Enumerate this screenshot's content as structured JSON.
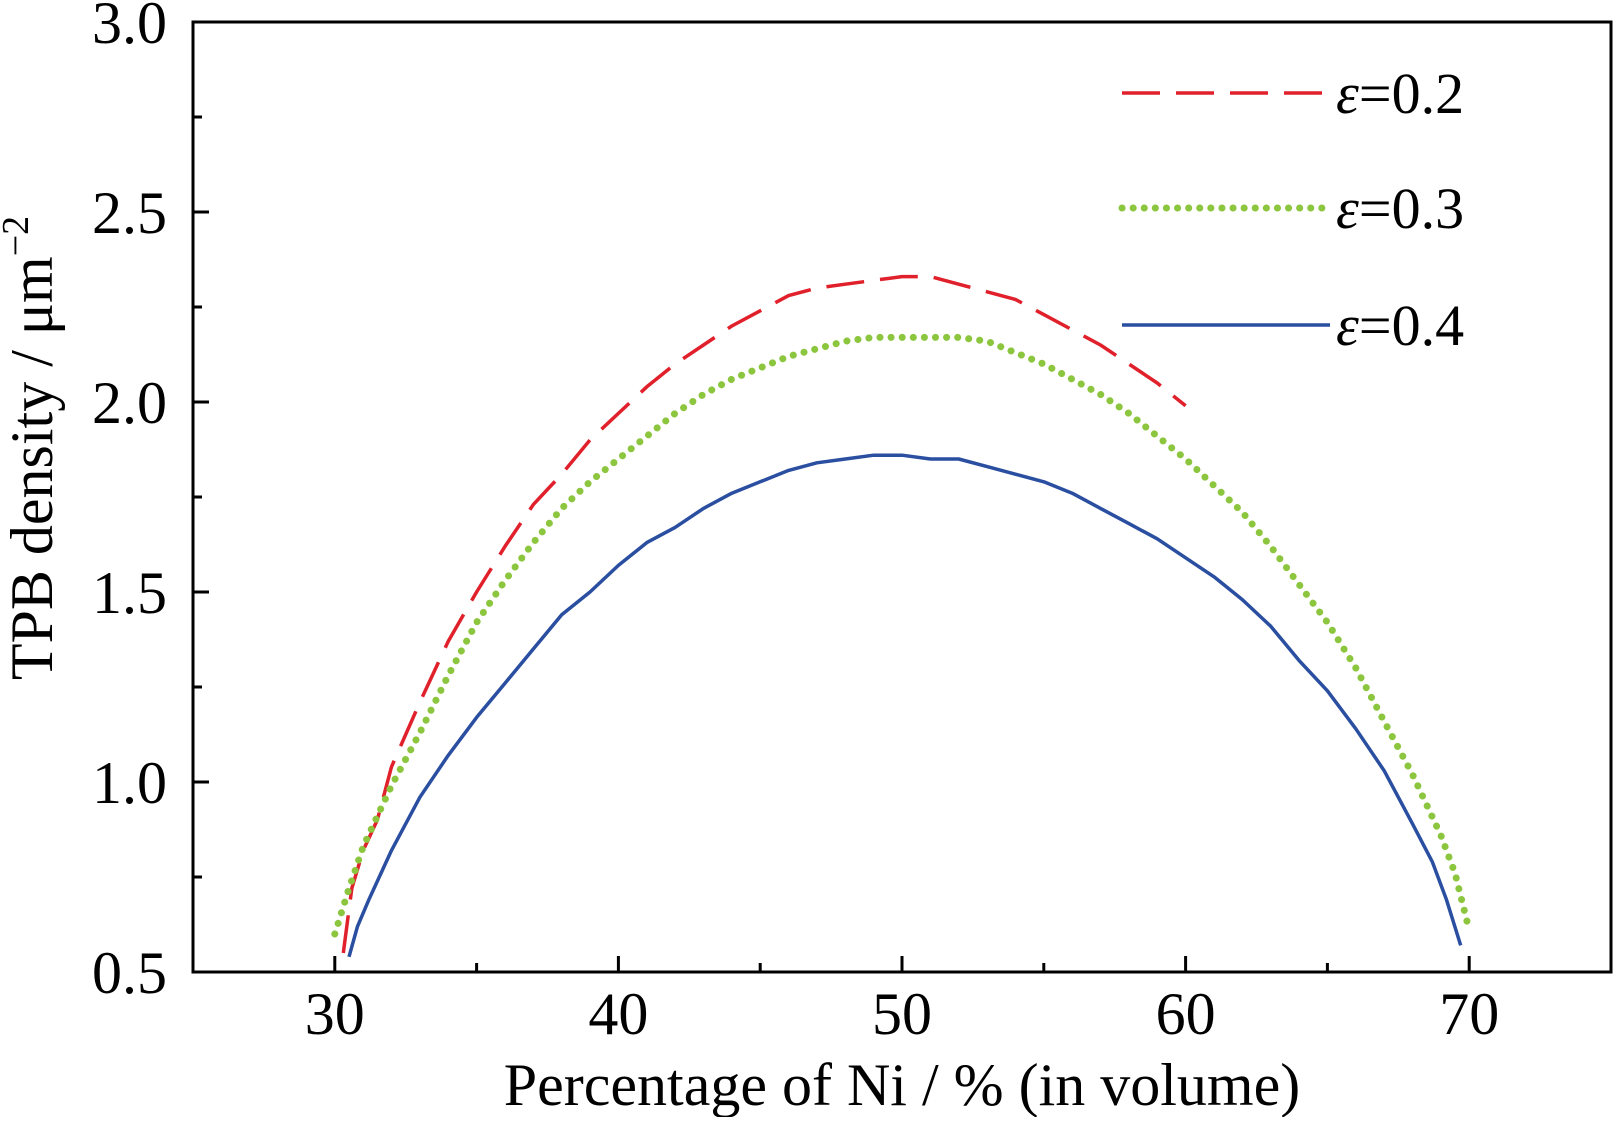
{
  "chart_data": {
    "type": "line",
    "title": "",
    "xlabel": "Percentage of Ni / % (in volume)",
    "ylabel": "TPB density / μm",
    "ylabel_superscript": "−2",
    "xlim": [
      25,
      75
    ],
    "ylim": [
      0.5,
      3.0
    ],
    "x_major_ticks": [
      30,
      40,
      50,
      60,
      70
    ],
    "x_tick_labels": [
      "30",
      "40",
      "50",
      "60",
      "70"
    ],
    "x_minor_ticks": [
      35,
      45,
      55,
      65
    ],
    "y_major_ticks": [
      0.5,
      1.0,
      1.5,
      2.0,
      2.5,
      3.0
    ],
    "y_tick_labels": [
      "0.5",
      "1.0",
      "1.5",
      "2.0",
      "2.5",
      "3.0"
    ],
    "y_minor_ticks": [
      0.75,
      1.25,
      1.75,
      2.25,
      2.75
    ],
    "grid": false,
    "legend_position": "top-right",
    "series": [
      {
        "name": "ε=0.2",
        "legend_symbol": "ε",
        "legend_text": "=0.2",
        "color": "#e0202a",
        "style": "dashed",
        "x": [
          30.3,
          30.6,
          31,
          31.5,
          32,
          33,
          34,
          35,
          36,
          37,
          38,
          39,
          40,
          41,
          42,
          43,
          44,
          45,
          46,
          47,
          48,
          49,
          50,
          51,
          52,
          53,
          54,
          55,
          56,
          57,
          58,
          59,
          60
        ],
        "y": [
          0.55,
          0.72,
          0.82,
          0.9,
          1.04,
          1.21,
          1.37,
          1.5,
          1.62,
          1.73,
          1.81,
          1.9,
          1.97,
          2.04,
          2.1,
          2.15,
          2.2,
          2.24,
          2.28,
          2.3,
          2.31,
          2.32,
          2.33,
          2.33,
          2.31,
          2.29,
          2.27,
          2.23,
          2.19,
          2.15,
          2.1,
          2.05,
          1.99
        ]
      },
      {
        "name": "ε=0.3",
        "legend_symbol": "ε",
        "legend_text": "=0.3",
        "color": "#8cc63f",
        "style": "dotted",
        "x": [
          30.0,
          30.5,
          31,
          32,
          33,
          34,
          35,
          36,
          37,
          38,
          39,
          40,
          41,
          42,
          43,
          44,
          45,
          46,
          47,
          48,
          49,
          50,
          51,
          52,
          53,
          54,
          55,
          56,
          57,
          58,
          59,
          60,
          61,
          62,
          63,
          64,
          65,
          66,
          67,
          68,
          69,
          69.5,
          70
        ],
        "y": [
          0.6,
          0.72,
          0.83,
          0.99,
          1.13,
          1.28,
          1.42,
          1.53,
          1.63,
          1.72,
          1.79,
          1.85,
          1.91,
          1.97,
          2.02,
          2.06,
          2.09,
          2.12,
          2.14,
          2.16,
          2.17,
          2.17,
          2.17,
          2.17,
          2.16,
          2.13,
          2.1,
          2.06,
          2.02,
          1.97,
          1.91,
          1.85,
          1.78,
          1.71,
          1.62,
          1.52,
          1.42,
          1.3,
          1.16,
          1.02,
          0.86,
          0.76,
          0.61
        ]
      },
      {
        "name": "ε=0.4",
        "legend_symbol": "ε",
        "legend_text": "=0.4",
        "color": "#2a4ea0",
        "style": "solid",
        "x": [
          30.5,
          30.8,
          31.2,
          32,
          33,
          34,
          35,
          36,
          37,
          38,
          39,
          40,
          41,
          42,
          43,
          44,
          45,
          46,
          47,
          48,
          49,
          50,
          51,
          52,
          53,
          54,
          55,
          56,
          57,
          58,
          59,
          60,
          61,
          62,
          63,
          64,
          65,
          66,
          67,
          68,
          68.7,
          69.2,
          69.7
        ],
        "y": [
          0.54,
          0.62,
          0.69,
          0.82,
          0.96,
          1.07,
          1.17,
          1.26,
          1.35,
          1.44,
          1.5,
          1.57,
          1.63,
          1.67,
          1.72,
          1.76,
          1.79,
          1.82,
          1.84,
          1.85,
          1.86,
          1.86,
          1.85,
          1.85,
          1.83,
          1.81,
          1.79,
          1.76,
          1.72,
          1.68,
          1.64,
          1.59,
          1.54,
          1.48,
          1.41,
          1.32,
          1.24,
          1.14,
          1.03,
          0.89,
          0.79,
          0.69,
          0.57
        ]
      }
    ]
  }
}
